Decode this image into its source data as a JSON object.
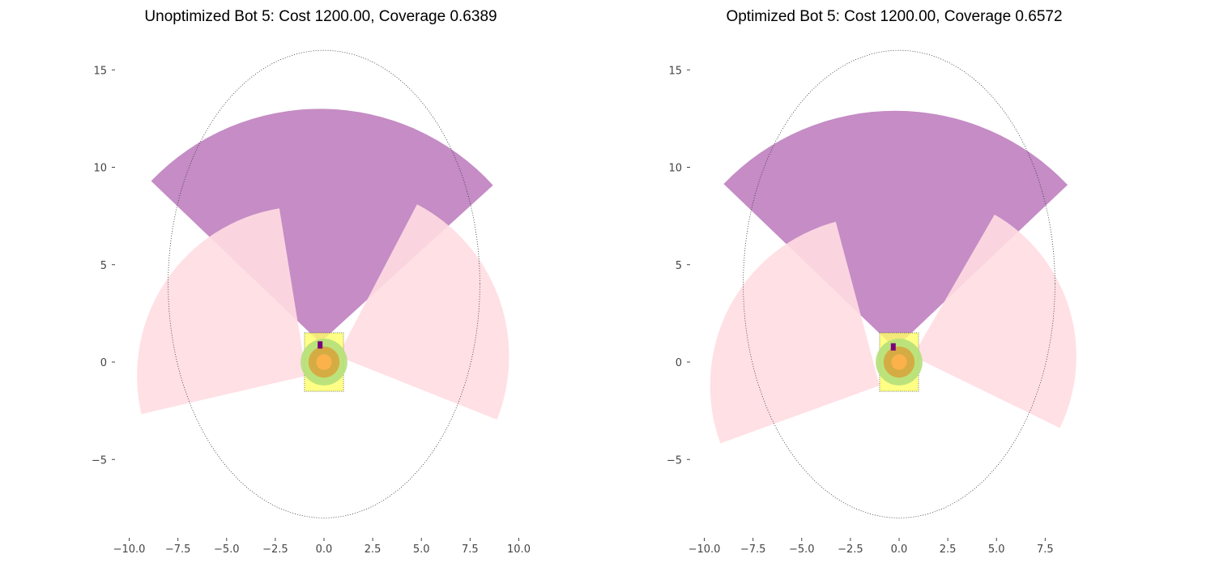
{
  "chart_data": [
    {
      "type": "sensor-coverage",
      "title": "Unoptimized Bot 5: Cost 1200.00, Coverage 0.6389",
      "xlim": [
        -10.2,
        10.2
      ],
      "ylim": [
        -8.7,
        16.0
      ],
      "xticks": [
        "−10.0",
        "−7.5",
        "−5.0",
        "−2.5",
        "0.0",
        "2.5",
        "5.0",
        "7.5",
        "10.0"
      ],
      "yticks": [
        "−5",
        "0",
        "5",
        "10",
        "15"
      ],
      "xtick_values": [
        -10,
        -7.5,
        -5,
        -2.5,
        0,
        2.5,
        5,
        7.5,
        10
      ],
      "ytick_values": [
        -5,
        0,
        5,
        10,
        15
      ],
      "coverage_ellipse": {
        "center": [
          0,
          4.0
        ],
        "rx": 8.0,
        "ry": 12.0
      },
      "body_box": {
        "x": [
          -1.0,
          1.0
        ],
        "y": [
          -1.5,
          1.5
        ]
      },
      "sectors": [
        {
          "color": "#bf7fbf",
          "apex": [
            -0.2,
            1.0
          ],
          "radius": 12.0,
          "angle_start": 42.3,
          "angle_end": 136.3
        },
        {
          "color": "#ffdde2",
          "apex": [
            -0.9,
            -0.7
          ],
          "radius": 8.7,
          "angle_start": 99.2,
          "angle_end": 193.1
        },
        {
          "color": "#ffdde2",
          "apex": [
            0.7,
            0.3
          ],
          "radius": 8.8,
          "angle_start": -21.7,
          "angle_end": 62.4
        }
      ],
      "circles": [
        {
          "color": "#b5e07a",
          "center": [
            0,
            0
          ],
          "r": 1.2
        },
        {
          "color": "#d7a53e",
          "center": [
            0,
            0
          ],
          "r": 0.8
        },
        {
          "color": "#ffb34d",
          "center": [
            0,
            0
          ],
          "r": 0.4
        }
      ],
      "sensor_marker": {
        "color": "#7a007a",
        "center": [
          -0.2,
          0.9
        ]
      }
    },
    {
      "type": "sensor-coverage",
      "title": "Optimized Bot 5: Cost 1200.00, Coverage 0.6572",
      "xlim": [
        -10.2,
        10.2
      ],
      "ylim": [
        -8.7,
        16.0
      ],
      "xticks": [
        "−10.0",
        "−7.5",
        "−5.0",
        "−2.5",
        "0.0",
        "2.5",
        "5.0",
        "7.5"
      ],
      "yticks": [
        "−5",
        "0",
        "5",
        "10",
        "15"
      ],
      "xtick_values": [
        -10,
        -7.5,
        -5,
        -2.5,
        0,
        2.5,
        5,
        7.5
      ],
      "ytick_values": [
        -5,
        0,
        5,
        10,
        15
      ],
      "coverage_ellipse": {
        "center": [
          0,
          4.0
        ],
        "rx": 8.0,
        "ry": 12.0
      },
      "body_box": {
        "x": [
          -1.0,
          1.0
        ],
        "y": [
          -1.5,
          1.5
        ]
      },
      "sectors": [
        {
          "color": "#bf7fbf",
          "apex": [
            -0.2,
            0.7
          ],
          "radius": 12.2,
          "angle_start": 43.5,
          "angle_end": 136.2
        },
        {
          "color": "#ffdde2",
          "apex": [
            -1.0,
            -1.2
          ],
          "radius": 8.7,
          "angle_start": 105.0,
          "angle_end": 200.0
        },
        {
          "color": "#ffdde2",
          "apex": [
            0.7,
            0.3
          ],
          "radius": 8.4,
          "angle_start": -26.0,
          "angle_end": 60.0
        }
      ],
      "circles": [
        {
          "color": "#b5e07a",
          "center": [
            0,
            0
          ],
          "r": 1.2
        },
        {
          "color": "#d7a53e",
          "center": [
            0,
            0
          ],
          "r": 0.8
        },
        {
          "color": "#ffb34d",
          "center": [
            0,
            0
          ],
          "r": 0.4
        }
      ],
      "sensor_marker": {
        "color": "#7a007a",
        "center": [
          -0.3,
          0.8
        ]
      }
    }
  ]
}
